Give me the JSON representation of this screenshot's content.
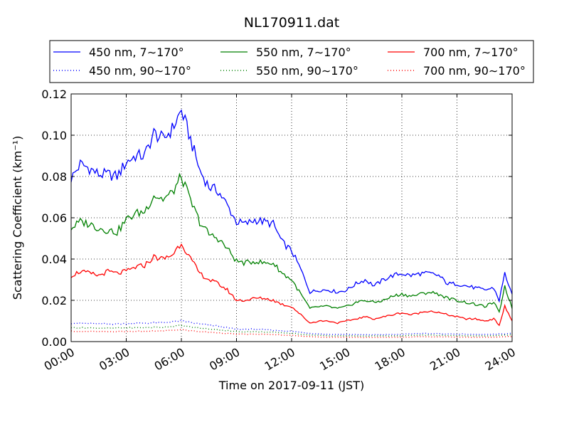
{
  "chart_data": {
    "type": "line",
    "title": "NL170911.dat",
    "xlabel": "Time on 2017-09-11 (JST)",
    "ylabel": "Scattering Coefficient (km⁻¹)",
    "xlim_hours": [
      0,
      24
    ],
    "ylim": [
      0.0,
      0.12
    ],
    "x_ticks": [
      "00:00",
      "03:00",
      "06:00",
      "09:00",
      "12:00",
      "15:00",
      "18:00",
      "21:00",
      "24:00"
    ],
    "y_ticks": [
      "0.00",
      "0.02",
      "0.04",
      "0.06",
      "0.08",
      "0.10",
      "0.12"
    ],
    "grid": true,
    "legend_placement": "top, above plot",
    "series": [
      {
        "name": "450 nm, 7∼170°",
        "color": "#0000ff",
        "style": "solid",
        "points": [
          [
            0,
            0.079
          ],
          [
            0.5,
            0.086
          ],
          [
            1,
            0.084
          ],
          [
            1.5,
            0.081
          ],
          [
            2,
            0.081
          ],
          [
            2.5,
            0.08
          ],
          [
            3,
            0.087
          ],
          [
            3.5,
            0.09
          ],
          [
            4,
            0.09
          ],
          [
            4.5,
            0.101
          ],
          [
            5,
            0.098
          ],
          [
            5.5,
            0.103
          ],
          [
            6,
            0.112
          ],
          [
            6.5,
            0.098
          ],
          [
            7,
            0.083
          ],
          [
            7.5,
            0.075
          ],
          [
            8,
            0.073
          ],
          [
            8.5,
            0.066
          ],
          [
            9,
            0.058
          ],
          [
            9.5,
            0.057
          ],
          [
            10,
            0.059
          ],
          [
            10.5,
            0.058
          ],
          [
            11,
            0.057
          ],
          [
            11.5,
            0.048
          ],
          [
            12,
            0.044
          ],
          [
            12.5,
            0.035
          ],
          [
            13,
            0.024
          ],
          [
            13.5,
            0.025
          ],
          [
            14,
            0.025
          ],
          [
            14.5,
            0.024
          ],
          [
            15,
            0.025
          ],
          [
            15.5,
            0.028
          ],
          [
            16,
            0.03
          ],
          [
            16.5,
            0.027
          ],
          [
            17,
            0.03
          ],
          [
            17.5,
            0.032
          ],
          [
            18,
            0.033
          ],
          [
            18.5,
            0.032
          ],
          [
            19,
            0.033
          ],
          [
            19.5,
            0.033
          ],
          [
            20,
            0.032
          ],
          [
            20.5,
            0.028
          ],
          [
            21,
            0.028
          ],
          [
            21.5,
            0.027
          ],
          [
            22,
            0.026
          ],
          [
            22.5,
            0.025
          ],
          [
            23,
            0.026
          ],
          [
            23.3,
            0.02
          ],
          [
            23.6,
            0.033
          ],
          [
            24,
            0.023
          ]
        ]
      },
      {
        "name": "450 nm, 90∼170°",
        "color": "#0000ff",
        "style": "dotted",
        "points": [
          [
            0,
            0.009
          ],
          [
            2,
            0.0085
          ],
          [
            4,
            0.009
          ],
          [
            5,
            0.0092
          ],
          [
            6,
            0.01
          ],
          [
            7,
            0.0085
          ],
          [
            8,
            0.0075
          ],
          [
            9,
            0.006
          ],
          [
            10,
            0.006
          ],
          [
            11,
            0.0055
          ],
          [
            12,
            0.005
          ],
          [
            13,
            0.004
          ],
          [
            14,
            0.0035
          ],
          [
            15,
            0.0035
          ],
          [
            16,
            0.0033
          ],
          [
            18,
            0.0035
          ],
          [
            19,
            0.004
          ],
          [
            20,
            0.0038
          ],
          [
            22,
            0.0035
          ],
          [
            23,
            0.0035
          ],
          [
            24,
            0.004
          ]
        ]
      },
      {
        "name": "550 nm, 7∼170°",
        "color": "#008000",
        "style": "solid",
        "points": [
          [
            0,
            0.055
          ],
          [
            0.5,
            0.058
          ],
          [
            1,
            0.057
          ],
          [
            1.5,
            0.055
          ],
          [
            2,
            0.054
          ],
          [
            2.5,
            0.053
          ],
          [
            3,
            0.059
          ],
          [
            3.5,
            0.062
          ],
          [
            4,
            0.063
          ],
          [
            4.5,
            0.071
          ],
          [
            5,
            0.069
          ],
          [
            5.5,
            0.072
          ],
          [
            6,
            0.08
          ],
          [
            6.5,
            0.068
          ],
          [
            7,
            0.058
          ],
          [
            7.5,
            0.052
          ],
          [
            8,
            0.05
          ],
          [
            8.5,
            0.045
          ],
          [
            9,
            0.039
          ],
          [
            9.5,
            0.038
          ],
          [
            10,
            0.039
          ],
          [
            10.5,
            0.038
          ],
          [
            11,
            0.038
          ],
          [
            11.5,
            0.033
          ],
          [
            12,
            0.03
          ],
          [
            12.5,
            0.023
          ],
          [
            13,
            0.016
          ],
          [
            13.5,
            0.017
          ],
          [
            14,
            0.017
          ],
          [
            14.5,
            0.016
          ],
          [
            15,
            0.017
          ],
          [
            15.5,
            0.019
          ],
          [
            16,
            0.02
          ],
          [
            16.5,
            0.019
          ],
          [
            17,
            0.02
          ],
          [
            17.5,
            0.022
          ],
          [
            18,
            0.023
          ],
          [
            18.5,
            0.022
          ],
          [
            19,
            0.023
          ],
          [
            19.5,
            0.024
          ],
          [
            20,
            0.023
          ],
          [
            20.5,
            0.021
          ],
          [
            21,
            0.02
          ],
          [
            21.5,
            0.019
          ],
          [
            22,
            0.018
          ],
          [
            22.5,
            0.017
          ],
          [
            23,
            0.019
          ],
          [
            23.3,
            0.014
          ],
          [
            23.6,
            0.027
          ],
          [
            24,
            0.016
          ]
        ]
      },
      {
        "name": "550 nm, 90∼170°",
        "color": "#008000",
        "style": "dotted",
        "points": [
          [
            0,
            0.0068
          ],
          [
            2,
            0.0065
          ],
          [
            4,
            0.0068
          ],
          [
            5,
            0.007
          ],
          [
            6,
            0.0078
          ],
          [
            7,
            0.0065
          ],
          [
            8,
            0.0058
          ],
          [
            9,
            0.0048
          ],
          [
            10,
            0.0048
          ],
          [
            11,
            0.0045
          ],
          [
            12,
            0.004
          ],
          [
            13,
            0.0032
          ],
          [
            14,
            0.0028
          ],
          [
            15,
            0.0028
          ],
          [
            16,
            0.0027
          ],
          [
            18,
            0.0028
          ],
          [
            19,
            0.0032
          ],
          [
            20,
            0.003
          ],
          [
            22,
            0.0028
          ],
          [
            23,
            0.0028
          ],
          [
            24,
            0.0033
          ]
        ]
      },
      {
        "name": "700 nm, 7∼170°",
        "color": "#ff0000",
        "style": "solid",
        "points": [
          [
            0,
            0.032
          ],
          [
            0.5,
            0.034
          ],
          [
            1,
            0.033
          ],
          [
            1.5,
            0.032
          ],
          [
            2,
            0.034
          ],
          [
            2.5,
            0.033
          ],
          [
            3,
            0.034
          ],
          [
            3.5,
            0.036
          ],
          [
            4,
            0.037
          ],
          [
            4.5,
            0.041
          ],
          [
            5,
            0.04
          ],
          [
            5.5,
            0.042
          ],
          [
            6,
            0.048
          ],
          [
            6.5,
            0.04
          ],
          [
            7,
            0.033
          ],
          [
            7.5,
            0.03
          ],
          [
            8,
            0.028
          ],
          [
            8.5,
            0.025
          ],
          [
            9,
            0.02
          ],
          [
            9.5,
            0.02
          ],
          [
            10,
            0.021
          ],
          [
            10.5,
            0.021
          ],
          [
            11,
            0.02
          ],
          [
            11.5,
            0.018
          ],
          [
            12,
            0.017
          ],
          [
            12.5,
            0.013
          ],
          [
            13,
            0.009
          ],
          [
            13.5,
            0.01
          ],
          [
            14,
            0.01
          ],
          [
            14.5,
            0.009
          ],
          [
            15,
            0.01
          ],
          [
            15.5,
            0.011
          ],
          [
            16,
            0.012
          ],
          [
            16.5,
            0.011
          ],
          [
            17,
            0.012
          ],
          [
            17.5,
            0.013
          ],
          [
            18,
            0.014
          ],
          [
            18.5,
            0.013
          ],
          [
            19,
            0.014
          ],
          [
            19.5,
            0.015
          ],
          [
            20,
            0.014
          ],
          [
            20.5,
            0.013
          ],
          [
            21,
            0.012
          ],
          [
            21.5,
            0.011
          ],
          [
            22,
            0.011
          ],
          [
            22.5,
            0.01
          ],
          [
            23,
            0.011
          ],
          [
            23.3,
            0.008
          ],
          [
            23.6,
            0.017
          ],
          [
            24,
            0.01
          ]
        ]
      },
      {
        "name": "700 nm, 90∼170°",
        "color": "#ff0000",
        "style": "dotted",
        "points": [
          [
            0,
            0.005
          ],
          [
            2,
            0.0048
          ],
          [
            4,
            0.005
          ],
          [
            5,
            0.0052
          ],
          [
            6,
            0.0058
          ],
          [
            7,
            0.0048
          ],
          [
            8,
            0.0043
          ],
          [
            9,
            0.0036
          ],
          [
            10,
            0.0036
          ],
          [
            11,
            0.0034
          ],
          [
            12,
            0.003
          ],
          [
            13,
            0.0024
          ],
          [
            14,
            0.0021
          ],
          [
            15,
            0.0021
          ],
          [
            16,
            0.002
          ],
          [
            18,
            0.0021
          ],
          [
            19,
            0.0024
          ],
          [
            20,
            0.0023
          ],
          [
            22,
            0.0021
          ],
          [
            23,
            0.0021
          ],
          [
            24,
            0.0025
          ]
        ]
      }
    ]
  }
}
